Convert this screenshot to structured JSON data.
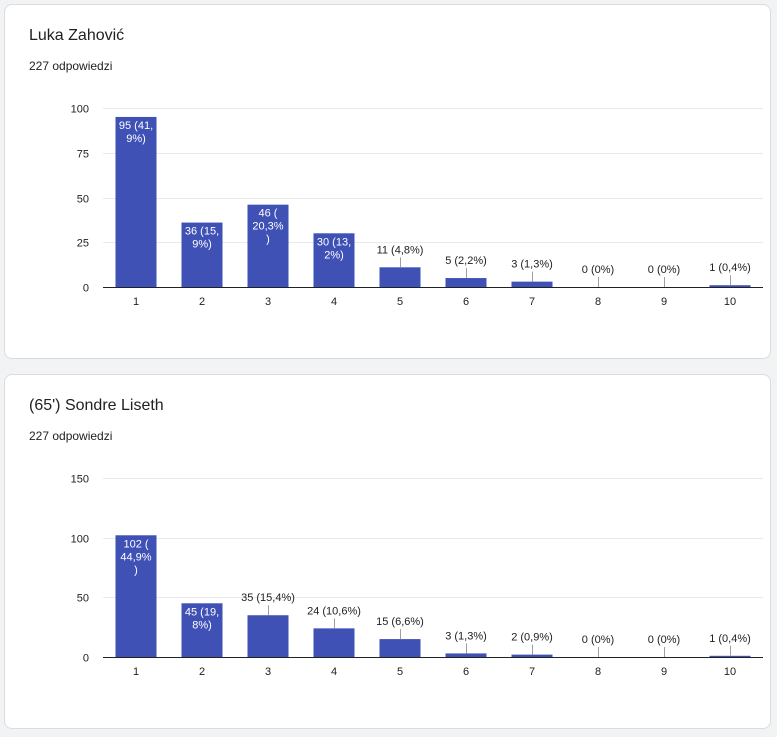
{
  "colors": {
    "bar": "#3f51b5",
    "grid": "#e8eaed",
    "baseline": "#202124",
    "label_inside": "#ffffff",
    "label_outside": "#202124",
    "leader": "#9aa0a6"
  },
  "cards": [
    {
      "title": "Luka Zahović",
      "subtitle": "227 odpowiedzi"
    },
    {
      "title": "(65') Sondre Liseth",
      "subtitle": "227 odpowiedzi"
    }
  ],
  "chart_data": [
    {
      "type": "bar",
      "title": "Luka Zahović",
      "subtitle": "227 odpowiedzi",
      "categories": [
        "1",
        "2",
        "3",
        "4",
        "5",
        "6",
        "7",
        "8",
        "9",
        "10"
      ],
      "values": [
        95,
        36,
        46,
        30,
        11,
        5,
        3,
        0,
        0,
        1
      ],
      "labels": [
        [
          "95 (41,",
          "9%)"
        ],
        [
          "36 (15,",
          "9%)"
        ],
        [
          "46 (",
          "20,3%",
          ")"
        ],
        [
          "30 (13,",
          "2%)"
        ],
        [
          "11 (4,8%)"
        ],
        [
          "5 (2,2%)"
        ],
        [
          "3 (1,3%)"
        ],
        [
          "0 (0%)"
        ],
        [
          "0 (0%)"
        ],
        [
          "1 (0,4%)"
        ]
      ],
      "label_inside": [
        true,
        true,
        true,
        true,
        false,
        false,
        false,
        false,
        false,
        false
      ],
      "yticks": [
        0,
        25,
        50,
        75,
        100
      ],
      "ylim": [
        0,
        100
      ],
      "grid": true,
      "legend": "none"
    },
    {
      "type": "bar",
      "title": "(65') Sondre Liseth",
      "subtitle": "227 odpowiedzi",
      "categories": [
        "1",
        "2",
        "3",
        "4",
        "5",
        "6",
        "7",
        "8",
        "9",
        "10"
      ],
      "values": [
        102,
        45,
        35,
        24,
        15,
        3,
        2,
        0,
        0,
        1
      ],
      "labels": [
        [
          "102 (",
          "44,9%",
          ")"
        ],
        [
          "45 (19,",
          "8%)"
        ],
        [
          "35 (15,4%)"
        ],
        [
          "24 (10,6%)"
        ],
        [
          "15 (6,6%)"
        ],
        [
          "3 (1,3%)"
        ],
        [
          "2 (0,9%)"
        ],
        [
          "0 (0%)"
        ],
        [
          "0 (0%)"
        ],
        [
          "1 (0,4%)"
        ]
      ],
      "label_inside": [
        true,
        true,
        false,
        false,
        false,
        false,
        false,
        false,
        false,
        false
      ],
      "yticks": [
        0,
        50,
        100,
        150
      ],
      "ylim": [
        0,
        150
      ],
      "grid": true,
      "legend": "none"
    }
  ]
}
